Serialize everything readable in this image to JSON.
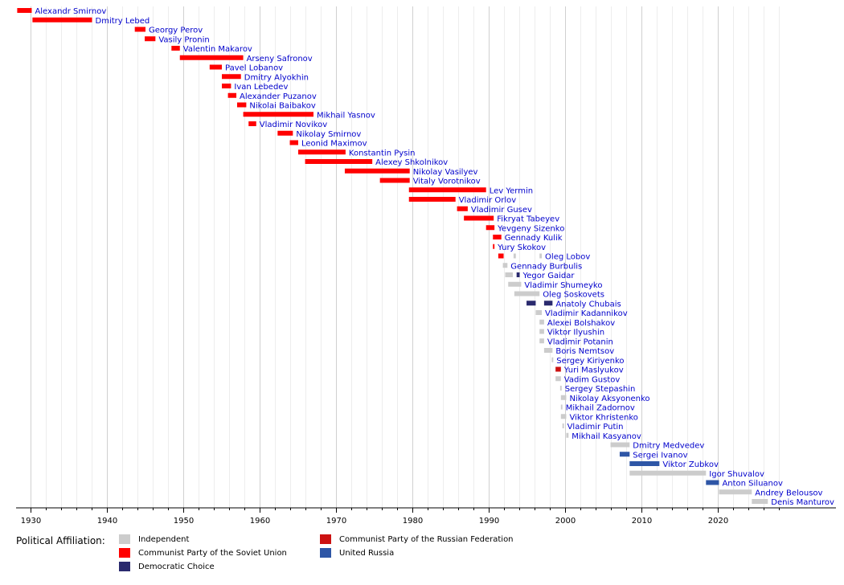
{
  "chart_data": {
    "type": "bar",
    "title": "",
    "xlabel": "",
    "ylabel": "",
    "xlim": [
      1928.2,
      2027.5
    ],
    "x_ticks": [
      "1930",
      "1940",
      "1950",
      "1960",
      "1970",
      "1980",
      "1990",
      "2000",
      "2010",
      "2020"
    ],
    "grid": "vertical",
    "affiliation_colors": {
      "Independent": "#cccccc",
      "Communist Party of the Soviet Union": "#ff0000",
      "Democratic Choice": "#2a2a6e",
      "Communist Party of the Russian Federation": "#cc1111",
      "United Russia": "#2e56a6"
    },
    "series": [
      {
        "name": "Alexandr Smirnov",
        "segments": [
          {
            "start": 1928.2,
            "end": 1930.1,
            "party": "Communist Party of the Soviet Union"
          }
        ]
      },
      {
        "name": "Dmitry Lebed",
        "segments": [
          {
            "start": 1930.2,
            "end": 1938.0,
            "party": "Communist Party of the Soviet Union"
          }
        ]
      },
      {
        "name": "Georgy Perov",
        "segments": [
          {
            "start": 1943.6,
            "end": 1945.0,
            "party": "Communist Party of the Soviet Union"
          }
        ]
      },
      {
        "name": "Vasily Pronin",
        "segments": [
          {
            "start": 1944.9,
            "end": 1946.3,
            "party": "Communist Party of the Soviet Union"
          }
        ]
      },
      {
        "name": "Valentin Makarov",
        "segments": [
          {
            "start": 1948.4,
            "end": 1949.5,
            "party": "Communist Party of the Soviet Union"
          }
        ]
      },
      {
        "name": "Arseny Safronov",
        "segments": [
          {
            "start": 1949.5,
            "end": 1957.8,
            "party": "Communist Party of the Soviet Union"
          }
        ]
      },
      {
        "name": "Pavel Lobanov",
        "segments": [
          {
            "start": 1953.4,
            "end": 1955.0,
            "party": "Communist Party of the Soviet Union"
          }
        ]
      },
      {
        "name": "Dmitry Alyokhin",
        "segments": [
          {
            "start": 1955.0,
            "end": 1957.5,
            "party": "Communist Party of the Soviet Union"
          }
        ]
      },
      {
        "name": "Ivan Lebedev",
        "segments": [
          {
            "start": 1955.0,
            "end": 1956.2,
            "party": "Communist Party of the Soviet Union"
          }
        ]
      },
      {
        "name": "Alexander Puzanov",
        "segments": [
          {
            "start": 1955.8,
            "end": 1956.9,
            "party": "Communist Party of the Soviet Union"
          }
        ]
      },
      {
        "name": "Nikolai Baibakov",
        "segments": [
          {
            "start": 1957.0,
            "end": 1958.2,
            "party": "Communist Party of the Soviet Union"
          }
        ]
      },
      {
        "name": "Mikhail Yasnov",
        "segments": [
          {
            "start": 1957.8,
            "end": 1967.0,
            "party": "Communist Party of the Soviet Union"
          }
        ]
      },
      {
        "name": "Vladimir Novikov",
        "segments": [
          {
            "start": 1958.5,
            "end": 1959.5,
            "party": "Communist Party of the Soviet Union"
          }
        ]
      },
      {
        "name": "Nikolay Smirnov",
        "segments": [
          {
            "start": 1962.3,
            "end": 1964.3,
            "party": "Communist Party of the Soviet Union"
          }
        ]
      },
      {
        "name": "Leonid Maximov",
        "segments": [
          {
            "start": 1963.9,
            "end": 1965.0,
            "party": "Communist Party of the Soviet Union"
          }
        ]
      },
      {
        "name": "Konstantin Pysin",
        "segments": [
          {
            "start": 1965.0,
            "end": 1971.2,
            "party": "Communist Party of the Soviet Union"
          }
        ]
      },
      {
        "name": "Alexey Shkolnikov",
        "segments": [
          {
            "start": 1965.9,
            "end": 1974.7,
            "party": "Communist Party of the Soviet Union"
          }
        ]
      },
      {
        "name": "Nikolay Vasilyev",
        "segments": [
          {
            "start": 1971.1,
            "end": 1979.6,
            "party": "Communist Party of the Soviet Union"
          }
        ]
      },
      {
        "name": "Vitaly Vorotnikov",
        "segments": [
          {
            "start": 1975.7,
            "end": 1979.6,
            "party": "Communist Party of the Soviet Union"
          }
        ]
      },
      {
        "name": "Lev Yermin",
        "segments": [
          {
            "start": 1979.5,
            "end": 1989.6,
            "party": "Communist Party of the Soviet Union"
          }
        ]
      },
      {
        "name": "Vladimir Orlov",
        "segments": [
          {
            "start": 1979.5,
            "end": 1985.6,
            "party": "Communist Party of the Soviet Union"
          }
        ]
      },
      {
        "name": "Vladimir Gusev",
        "segments": [
          {
            "start": 1985.8,
            "end": 1987.2,
            "party": "Communist Party of the Soviet Union"
          }
        ]
      },
      {
        "name": "Fikryat Tabeyev",
        "segments": [
          {
            "start": 1986.7,
            "end": 1990.6,
            "party": "Communist Party of the Soviet Union"
          }
        ]
      },
      {
        "name": "Yevgeny Sizenko",
        "segments": [
          {
            "start": 1989.6,
            "end": 1990.7,
            "party": "Communist Party of the Soviet Union"
          }
        ]
      },
      {
        "name": "Gennady Kulik",
        "segments": [
          {
            "start": 1990.5,
            "end": 1991.6,
            "party": "Communist Party of the Soviet Union"
          }
        ]
      },
      {
        "name": "Yury Skokov",
        "segments": [
          {
            "start": 1990.5,
            "end": 1990.7,
            "party": "Communist Party of the Soviet Union"
          }
        ]
      },
      {
        "name": "Oleg Lobov",
        "segments": [
          {
            "start": 1991.2,
            "end": 1991.9,
            "party": "Communist Party of the Soviet Union"
          },
          {
            "start": 1993.2,
            "end": 1993.5,
            "party": "Independent"
          },
          {
            "start": 1996.6,
            "end": 1996.9,
            "party": "Independent"
          }
        ]
      },
      {
        "name": "Gennady Burbulis",
        "segments": [
          {
            "start": 1991.8,
            "end": 1992.4,
            "party": "Independent"
          }
        ]
      },
      {
        "name": "Yegor Gaidar",
        "segments": [
          {
            "start": 1992.1,
            "end": 1993.1,
            "party": "Independent"
          },
          {
            "start": 1993.6,
            "end": 1994.0,
            "party": "Democratic Choice"
          }
        ]
      },
      {
        "name": "Vladimir Shumeyko",
        "segments": [
          {
            "start": 1992.5,
            "end": 1994.2,
            "party": "Independent"
          }
        ]
      },
      {
        "name": "Oleg Soskovets",
        "segments": [
          {
            "start": 1993.3,
            "end": 1996.6,
            "party": "Independent"
          }
        ]
      },
      {
        "name": "Anatoly Chubais",
        "segments": [
          {
            "start": 1994.9,
            "end": 1996.1,
            "party": "Democratic Choice"
          },
          {
            "start": 1997.2,
            "end": 1998.3,
            "party": "Democratic Choice"
          }
        ]
      },
      {
        "name": "Vladimir Kadannikov",
        "segments": [
          {
            "start": 1996.1,
            "end": 1996.9,
            "party": "Independent"
          }
        ]
      },
      {
        "name": "Alexei Bolshakov",
        "segments": [
          {
            "start": 1996.6,
            "end": 1997.2,
            "party": "Independent"
          }
        ]
      },
      {
        "name": "Viktor Ilyushin",
        "segments": [
          {
            "start": 1996.6,
            "end": 1997.2,
            "party": "Independent"
          }
        ]
      },
      {
        "name": "Vladimir Potanin",
        "segments": [
          {
            "start": 1996.6,
            "end": 1997.2,
            "party": "Independent"
          }
        ]
      },
      {
        "name": "Boris Nemtsov",
        "segments": [
          {
            "start": 1997.2,
            "end": 1998.3,
            "party": "Independent"
          }
        ]
      },
      {
        "name": "Sergey Kiriyenko",
        "segments": [
          {
            "start": 1998.2,
            "end": 1998.4,
            "party": "Independent"
          }
        ]
      },
      {
        "name": "Yuri Maslyukov",
        "segments": [
          {
            "start": 1998.7,
            "end": 1999.4,
            "party": "Communist Party of the Russian Federation"
          }
        ]
      },
      {
        "name": "Vadim Gustov",
        "segments": [
          {
            "start": 1998.7,
            "end": 1999.4,
            "party": "Independent"
          }
        ]
      },
      {
        "name": "Sergey Stepashin",
        "segments": [
          {
            "start": 1999.3,
            "end": 1999.5,
            "party": "Independent"
          }
        ]
      },
      {
        "name": "Nikolay Aksyonenko",
        "segments": [
          {
            "start": 1999.4,
            "end": 2000.1,
            "party": "Independent"
          }
        ]
      },
      {
        "name": "Mikhail Zadornov",
        "segments": [
          {
            "start": 1999.4,
            "end": 1999.6,
            "party": "Independent"
          }
        ]
      },
      {
        "name": "Viktor Khristenko",
        "segments": [
          {
            "start": 1999.4,
            "end": 2000.1,
            "party": "Independent"
          }
        ]
      },
      {
        "name": "Vladimir Putin",
        "segments": [
          {
            "start": 1999.6,
            "end": 1999.8,
            "party": "Independent"
          }
        ]
      },
      {
        "name": "Mikhail Kasyanov",
        "segments": [
          {
            "start": 2000.1,
            "end": 2000.4,
            "party": "Independent"
          }
        ]
      },
      {
        "name": "Dmitry Medvedev",
        "segments": [
          {
            "start": 2005.9,
            "end": 2008.4,
            "party": "Independent"
          }
        ]
      },
      {
        "name": "Sergei Ivanov",
        "segments": [
          {
            "start": 2007.1,
            "end": 2008.4,
            "party": "United Russia"
          }
        ]
      },
      {
        "name": "Viktor Zubkov",
        "segments": [
          {
            "start": 2008.4,
            "end": 2012.3,
            "party": "United Russia"
          }
        ]
      },
      {
        "name": "Igor Shuvalov",
        "segments": [
          {
            "start": 2008.4,
            "end": 2018.4,
            "party": "Independent"
          }
        ]
      },
      {
        "name": "Anton Siluanov",
        "segments": [
          {
            "start": 2018.4,
            "end": 2020.1,
            "party": "United Russia"
          }
        ]
      },
      {
        "name": "Andrey Belousov",
        "segments": [
          {
            "start": 2020.1,
            "end": 2024.4,
            "party": "Independent"
          }
        ]
      },
      {
        "name": "Denis Manturov",
        "segments": [
          {
            "start": 2024.4,
            "end": 2026.5,
            "party": "Independent"
          }
        ]
      }
    ]
  },
  "legend": {
    "title": "Political Affiliation:",
    "entries": [
      {
        "label": "Independent",
        "party": "Independent"
      },
      {
        "label": "Communist Party of the Soviet Union",
        "party": "Communist Party of the Soviet Union"
      },
      {
        "label": "Democratic Choice",
        "party": "Democratic Choice"
      },
      {
        "label": "Communist Party of the Russian Federation",
        "party": "Communist Party of the Russian Federation"
      },
      {
        "label": "United Russia",
        "party": "United Russia"
      }
    ]
  }
}
